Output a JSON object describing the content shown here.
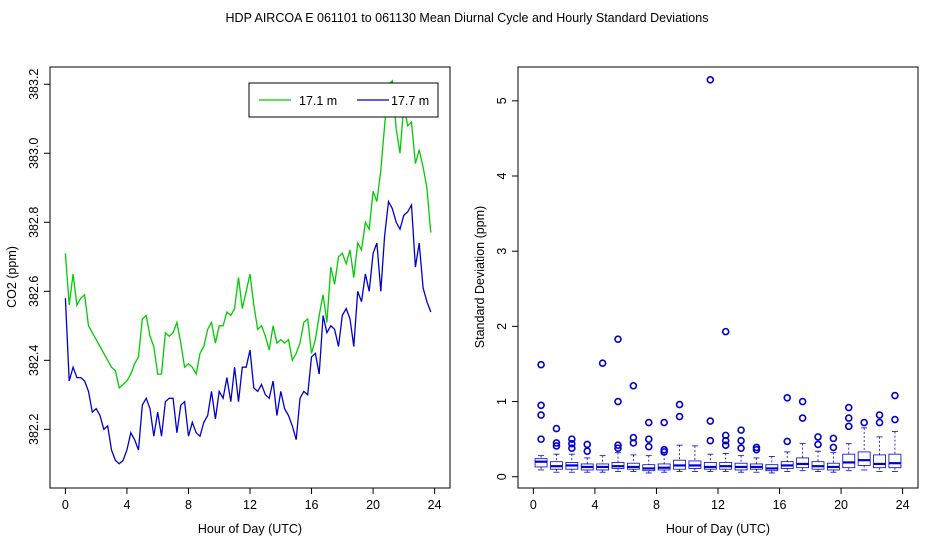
{
  "figure": {
    "title": "HDP   AIRCOA E   061101 to 061130   Mean Diurnal Cycle and Hourly Standard Deviations"
  },
  "chart_data": [
    {
      "type": "line",
      "xlabel": "Hour of Day (UTC)",
      "ylabel": "CO2 (ppm)",
      "xlim": [
        -1,
        25
      ],
      "ylim": [
        382.03,
        383.25
      ],
      "xticks": [
        0,
        4,
        8,
        12,
        16,
        20,
        24
      ],
      "yticks": [
        382.2,
        382.4,
        382.6,
        382.8,
        383.0,
        383.2
      ],
      "ytick_labels": [
        "382.2",
        "382.4",
        "382.6",
        "382.8",
        "383.0",
        "383.2"
      ],
      "grid": false,
      "legend": "top-right",
      "series": [
        {
          "name": "17.1 m",
          "color": "#00cc00",
          "x": [
            0,
            0.25,
            0.5,
            0.75,
            1,
            1.25,
            1.5,
            1.75,
            2,
            2.25,
            2.5,
            2.75,
            3,
            3.25,
            3.5,
            3.75,
            4,
            4.25,
            4.5,
            4.75,
            5,
            5.25,
            5.5,
            5.75,
            6,
            6.25,
            6.5,
            6.75,
            7,
            7.25,
            7.5,
            7.75,
            8,
            8.25,
            8.5,
            8.75,
            9,
            9.25,
            9.5,
            9.75,
            10,
            10.25,
            10.5,
            10.75,
            11,
            11.25,
            11.5,
            11.75,
            12,
            12.25,
            12.5,
            12.75,
            13,
            13.25,
            13.5,
            13.75,
            14,
            14.25,
            14.5,
            14.75,
            15,
            15.25,
            15.5,
            15.75,
            16,
            16.25,
            16.5,
            16.75,
            17,
            17.25,
            17.5,
            17.75,
            18,
            18.25,
            18.5,
            18.75,
            19,
            19.25,
            19.5,
            19.75,
            20,
            20.25,
            20.5,
            20.75,
            21,
            21.25,
            21.5,
            21.75,
            22,
            22.25,
            22.5,
            22.75,
            23,
            23.25,
            23.5,
            23.75
          ],
          "values": [
            382.71,
            382.56,
            382.65,
            382.56,
            382.58,
            382.59,
            382.5,
            382.48,
            382.46,
            382.44,
            382.42,
            382.4,
            382.38,
            382.37,
            382.32,
            382.33,
            382.34,
            382.36,
            382.39,
            382.41,
            382.52,
            382.53,
            382.47,
            382.44,
            382.36,
            382.36,
            382.48,
            382.47,
            382.48,
            382.51,
            382.45,
            382.38,
            382.39,
            382.38,
            382.36,
            382.42,
            382.44,
            382.49,
            382.51,
            382.45,
            382.5,
            382.5,
            382.54,
            382.53,
            382.55,
            382.64,
            382.55,
            382.6,
            382.65,
            382.56,
            382.49,
            382.5,
            382.47,
            382.43,
            382.5,
            382.45,
            382.46,
            382.45,
            382.46,
            382.4,
            382.42,
            382.45,
            382.51,
            382.52,
            382.42,
            382.46,
            382.53,
            382.59,
            382.51,
            382.67,
            382.62,
            382.7,
            382.71,
            382.68,
            382.72,
            382.64,
            382.74,
            382.72,
            382.8,
            382.78,
            382.89,
            382.86,
            382.95,
            383.08,
            383.2,
            383.21,
            383.07,
            383.0,
            383.14,
            383.08,
            383.09,
            382.97,
            383.01,
            382.96,
            382.9,
            382.77
          ],
          "values_precision_note": ""
        },
        {
          "name": "17.7 m",
          "color": "#0000cc",
          "x": [
            0,
            0.25,
            0.5,
            0.75,
            1,
            1.25,
            1.5,
            1.75,
            2,
            2.25,
            2.5,
            2.75,
            3,
            3.25,
            3.5,
            3.75,
            4,
            4.25,
            4.5,
            4.75,
            5,
            5.25,
            5.5,
            5.75,
            6,
            6.25,
            6.5,
            6.75,
            7,
            7.25,
            7.5,
            7.75,
            8,
            8.25,
            8.5,
            8.75,
            9,
            9.25,
            9.5,
            9.75,
            10,
            10.25,
            10.5,
            10.75,
            11,
            11.25,
            11.5,
            11.75,
            12,
            12.25,
            12.5,
            12.75,
            13,
            13.25,
            13.5,
            13.75,
            14,
            14.25,
            14.5,
            14.75,
            15,
            15.25,
            15.5,
            15.75,
            16,
            16.25,
            16.5,
            16.75,
            17,
            17.25,
            17.5,
            17.75,
            18,
            18.25,
            18.5,
            18.75,
            19,
            19.25,
            19.5,
            19.75,
            20,
            20.25,
            20.5,
            20.75,
            21,
            21.25,
            21.5,
            21.75,
            22,
            22.25,
            22.5,
            22.75,
            23,
            23.25,
            23.5,
            23.75
          ],
          "values": [
            382.58,
            382.34,
            382.38,
            382.35,
            382.35,
            382.34,
            382.31,
            382.25,
            382.26,
            382.24,
            382.2,
            382.21,
            382.14,
            382.11,
            382.1,
            382.11,
            382.14,
            382.19,
            382.17,
            382.14,
            382.27,
            382.29,
            382.26,
            382.18,
            382.25,
            382.18,
            382.28,
            382.29,
            382.29,
            382.19,
            382.27,
            382.28,
            382.18,
            382.22,
            382.19,
            382.18,
            382.22,
            382.24,
            382.31,
            382.23,
            382.31,
            382.29,
            382.35,
            382.28,
            382.38,
            382.28,
            382.38,
            382.38,
            382.43,
            382.32,
            382.31,
            382.33,
            382.3,
            382.29,
            382.34,
            382.24,
            382.31,
            382.26,
            382.24,
            382.21,
            382.17,
            382.29,
            382.31,
            382.3,
            382.41,
            382.42,
            382.36,
            382.53,
            382.48,
            382.5,
            382.49,
            382.44,
            382.53,
            382.55,
            382.52,
            382.44,
            382.6,
            382.57,
            382.65,
            382.6,
            382.71,
            382.74,
            382.6,
            382.76,
            382.86,
            382.84,
            382.8,
            382.78,
            382.82,
            382.83,
            382.85,
            382.67,
            382.74,
            382.61,
            382.57,
            382.54
          ],
          "values_precision_note": ""
        }
      ]
    },
    {
      "type": "box",
      "xlabel": "Hour of Day (UTC)",
      "ylabel": "Standard Deviation (ppm)",
      "xlim": [
        -1,
        25
      ],
      "ylim": [
        -0.15,
        5.45
      ],
      "xticks": [
        0,
        4,
        8,
        12,
        16,
        20,
        24
      ],
      "yticks": [
        0,
        1,
        2,
        3,
        4,
        5
      ],
      "grid": false,
      "color": "#0000cc",
      "boxes": [
        {
          "x": 0.5,
          "min": 0.09,
          "q1": 0.13,
          "median": 0.2,
          "q3": 0.24,
          "max": 0.28,
          "outliers": [
            0.5,
            0.82,
            0.95,
            1.49
          ]
        },
        {
          "x": 1.5,
          "min": 0.06,
          "q1": 0.1,
          "median": 0.14,
          "q3": 0.2,
          "max": 0.3,
          "outliers": [
            0.41,
            0.45,
            0.64
          ]
        },
        {
          "x": 2.5,
          "min": 0.06,
          "q1": 0.1,
          "median": 0.15,
          "q3": 0.19,
          "max": 0.3,
          "outliers": [
            0.38,
            0.44,
            0.5
          ]
        },
        {
          "x": 3.5,
          "min": 0.06,
          "q1": 0.09,
          "median": 0.13,
          "q3": 0.17,
          "max": 0.25,
          "outliers": [
            0.34,
            0.43
          ]
        },
        {
          "x": 4.5,
          "min": 0.06,
          "q1": 0.09,
          "median": 0.13,
          "q3": 0.17,
          "max": 0.28,
          "outliers": [
            1.51
          ]
        },
        {
          "x": 5.5,
          "min": 0.07,
          "q1": 0.11,
          "median": 0.14,
          "q3": 0.19,
          "max": 0.32,
          "outliers": [
            0.38,
            0.42,
            1.0,
            1.83
          ]
        },
        {
          "x": 6.5,
          "min": 0.07,
          "q1": 0.1,
          "median": 0.13,
          "q3": 0.18,
          "max": 0.29,
          "outliers": [
            0.45,
            0.52,
            1.21
          ]
        },
        {
          "x": 7.5,
          "min": 0.05,
          "q1": 0.08,
          "median": 0.11,
          "q3": 0.16,
          "max": 0.28,
          "outliers": [
            0.4,
            0.5,
            0.72
          ]
        },
        {
          "x": 8.5,
          "min": 0.06,
          "q1": 0.09,
          "median": 0.12,
          "q3": 0.17,
          "max": 0.3,
          "outliers": [
            0.33,
            0.36,
            0.72
          ]
        },
        {
          "x": 9.5,
          "min": 0.07,
          "q1": 0.1,
          "median": 0.15,
          "q3": 0.22,
          "max": 0.42,
          "outliers": [
            0.8,
            0.96
          ]
        },
        {
          "x": 10.5,
          "min": 0.07,
          "q1": 0.11,
          "median": 0.15,
          "q3": 0.21,
          "max": 0.41,
          "outliers": []
        },
        {
          "x": 11.5,
          "min": 0.07,
          "q1": 0.1,
          "median": 0.13,
          "q3": 0.19,
          "max": 0.3,
          "outliers": [
            0.48,
            0.74,
            5.28
          ]
        },
        {
          "x": 12.5,
          "min": 0.07,
          "q1": 0.1,
          "median": 0.14,
          "q3": 0.19,
          "max": 0.31,
          "outliers": [
            0.42,
            0.48,
            0.55,
            1.93
          ]
        },
        {
          "x": 13.5,
          "min": 0.06,
          "q1": 0.09,
          "median": 0.13,
          "q3": 0.18,
          "max": 0.28,
          "outliers": [
            0.38,
            0.48,
            0.62
          ]
        },
        {
          "x": 14.5,
          "min": 0.06,
          "q1": 0.1,
          "median": 0.13,
          "q3": 0.17,
          "max": 0.25,
          "outliers": [
            0.36,
            0.39
          ]
        },
        {
          "x": 15.5,
          "min": 0.05,
          "q1": 0.08,
          "median": 0.11,
          "q3": 0.16,
          "max": 0.27,
          "outliers": []
        },
        {
          "x": 16.5,
          "min": 0.07,
          "q1": 0.11,
          "median": 0.15,
          "q3": 0.2,
          "max": 0.33,
          "outliers": [
            0.47,
            1.05
          ]
        },
        {
          "x": 17.5,
          "min": 0.08,
          "q1": 0.12,
          "median": 0.17,
          "q3": 0.25,
          "max": 0.44,
          "outliers": [
            0.78,
            1.0
          ]
        },
        {
          "x": 18.5,
          "min": 0.07,
          "q1": 0.1,
          "median": 0.14,
          "q3": 0.2,
          "max": 0.34,
          "outliers": [
            0.43,
            0.53
          ]
        },
        {
          "x": 19.5,
          "min": 0.06,
          "q1": 0.09,
          "median": 0.13,
          "q3": 0.18,
          "max": 0.32,
          "outliers": [
            0.39,
            0.51
          ]
        },
        {
          "x": 20.5,
          "min": 0.08,
          "q1": 0.12,
          "median": 0.19,
          "q3": 0.3,
          "max": 0.44,
          "outliers": [
            0.67,
            0.78,
            0.92
          ]
        },
        {
          "x": 21.5,
          "min": 0.09,
          "q1": 0.15,
          "median": 0.22,
          "q3": 0.33,
          "max": 0.65,
          "outliers": [
            0.72
          ]
        },
        {
          "x": 22.5,
          "min": 0.07,
          "q1": 0.12,
          "median": 0.17,
          "q3": 0.29,
          "max": 0.53,
          "outliers": [
            0.72,
            0.82
          ]
        },
        {
          "x": 23.5,
          "min": 0.07,
          "q1": 0.12,
          "median": 0.18,
          "q3": 0.3,
          "max": 0.6,
          "outliers": [
            0.76,
            1.08
          ]
        }
      ]
    }
  ]
}
